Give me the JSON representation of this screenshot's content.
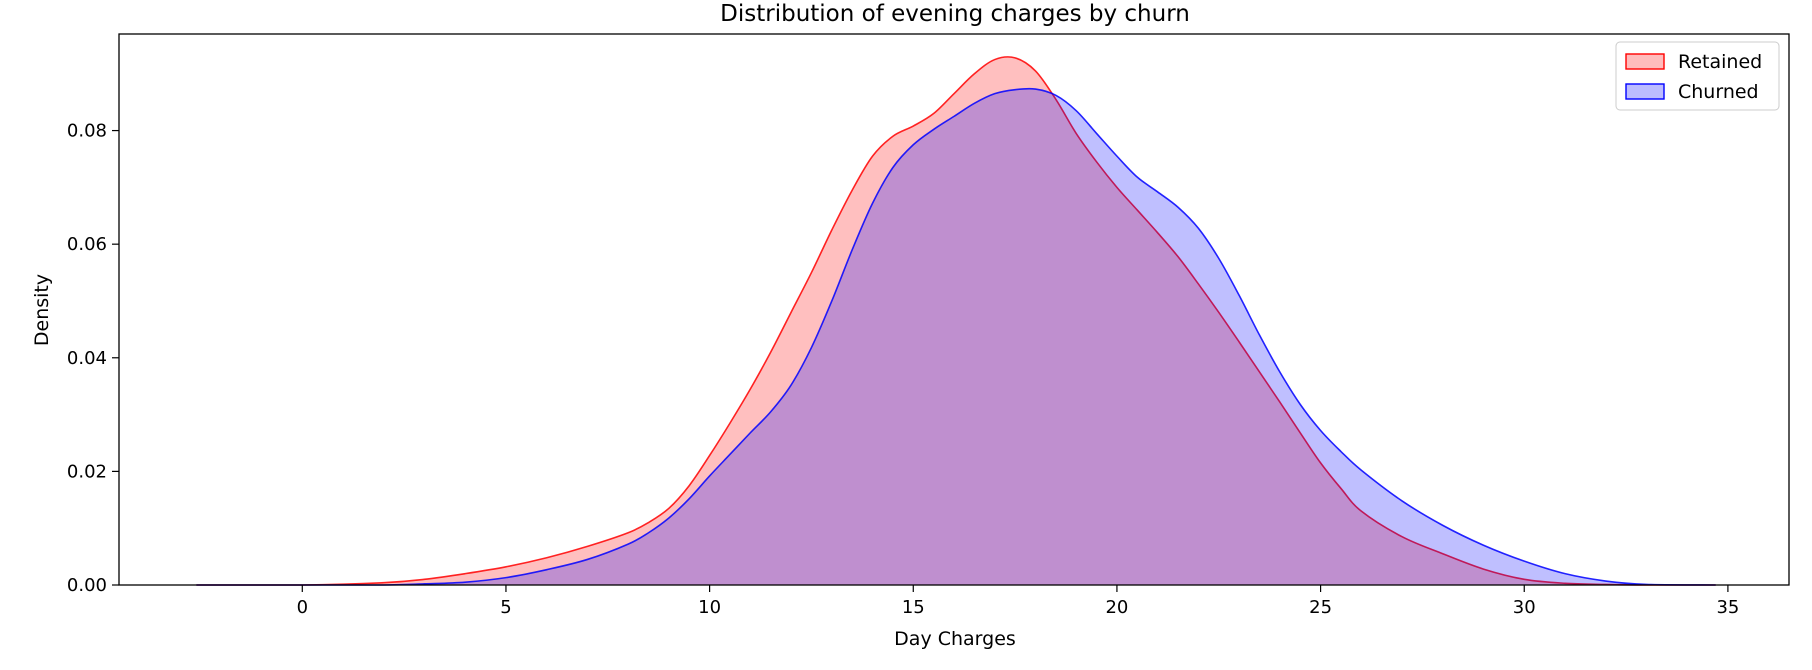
{
  "chart_data": {
    "type": "area",
    "title": "Distribution of evening charges by churn",
    "xlabel": "Day Charges",
    "ylabel": "Density",
    "xlim": [
      -4.5,
      36.5
    ],
    "ylim": [
      0,
      0.097
    ],
    "xticks": [
      0,
      5,
      10,
      15,
      20,
      25,
      30,
      35
    ],
    "yticks": [
      0.0,
      0.02,
      0.04,
      0.06,
      0.08
    ],
    "ytick_labels": [
      "0.00",
      "0.02",
      "0.04",
      "0.06",
      "0.08"
    ],
    "legend_position": "top-right",
    "grid": false,
    "series": [
      {
        "name": "Retained",
        "color": "#ff0000",
        "fill": "#ffbcbc",
        "x": [
          -2.6,
          0,
          2,
          3,
          4,
          5,
          6,
          7,
          8,
          8.5,
          9,
          9.5,
          10,
          10.5,
          11,
          11.5,
          12,
          12.5,
          13,
          13.5,
          14,
          14.5,
          15,
          15.5,
          16,
          16.5,
          17,
          17.5,
          18,
          18.5,
          19,
          19.5,
          20,
          20.5,
          21,
          21.5,
          22,
          22.5,
          23,
          23.5,
          24,
          24.5,
          25,
          25.5,
          26,
          27,
          28,
          29,
          30,
          31,
          32,
          33,
          34.7
        ],
        "y": [
          0.0,
          0.0,
          0.0004,
          0.001,
          0.002,
          0.0032,
          0.0048,
          0.0068,
          0.0092,
          0.011,
          0.0135,
          0.0175,
          0.0228,
          0.0285,
          0.0345,
          0.041,
          0.048,
          0.055,
          0.0625,
          0.0695,
          0.0755,
          0.079,
          0.0808,
          0.083,
          0.0865,
          0.09,
          0.0925,
          0.0928,
          0.0905,
          0.0855,
          0.0795,
          0.0745,
          0.07,
          0.066,
          0.062,
          0.0578,
          0.053,
          0.048,
          0.0428,
          0.0375,
          0.0322,
          0.0268,
          0.0215,
          0.017,
          0.013,
          0.0085,
          0.0055,
          0.0028,
          0.001,
          0.0003,
          0.0001,
          0.0,
          0.0
        ]
      },
      {
        "name": "Churned",
        "color": "#0000ff",
        "fill": "#bcbcff",
        "x": [
          -2.6,
          0,
          2,
          3,
          4,
          5,
          6,
          7,
          8,
          8.5,
          9,
          9.5,
          10,
          10.5,
          11,
          11.5,
          12,
          12.5,
          13,
          13.5,
          14,
          14.5,
          15,
          15.5,
          16,
          16.5,
          17,
          17.5,
          18,
          18.5,
          19,
          19.5,
          20,
          20.5,
          21,
          21.5,
          22,
          22.5,
          23,
          23.5,
          24,
          24.5,
          25,
          25.5,
          26,
          27,
          28,
          29,
          30,
          31,
          32,
          33,
          34.7
        ],
        "y": [
          0.0,
          0.0,
          0.0,
          0.0002,
          0.0005,
          0.0013,
          0.0027,
          0.0045,
          0.0072,
          0.0092,
          0.0118,
          0.0152,
          0.0192,
          0.023,
          0.0268,
          0.0305,
          0.0352,
          0.0418,
          0.05,
          0.059,
          0.0672,
          0.0735,
          0.0775,
          0.0802,
          0.0825,
          0.0848,
          0.0865,
          0.0872,
          0.0873,
          0.0862,
          0.0835,
          0.0795,
          0.0755,
          0.0718,
          0.0692,
          0.0665,
          0.0628,
          0.0575,
          0.051,
          0.044,
          0.0375,
          0.0318,
          0.0272,
          0.0235,
          0.0202,
          0.0148,
          0.0105,
          0.007,
          0.0042,
          0.002,
          0.0007,
          0.0001,
          0.0
        ]
      }
    ]
  }
}
